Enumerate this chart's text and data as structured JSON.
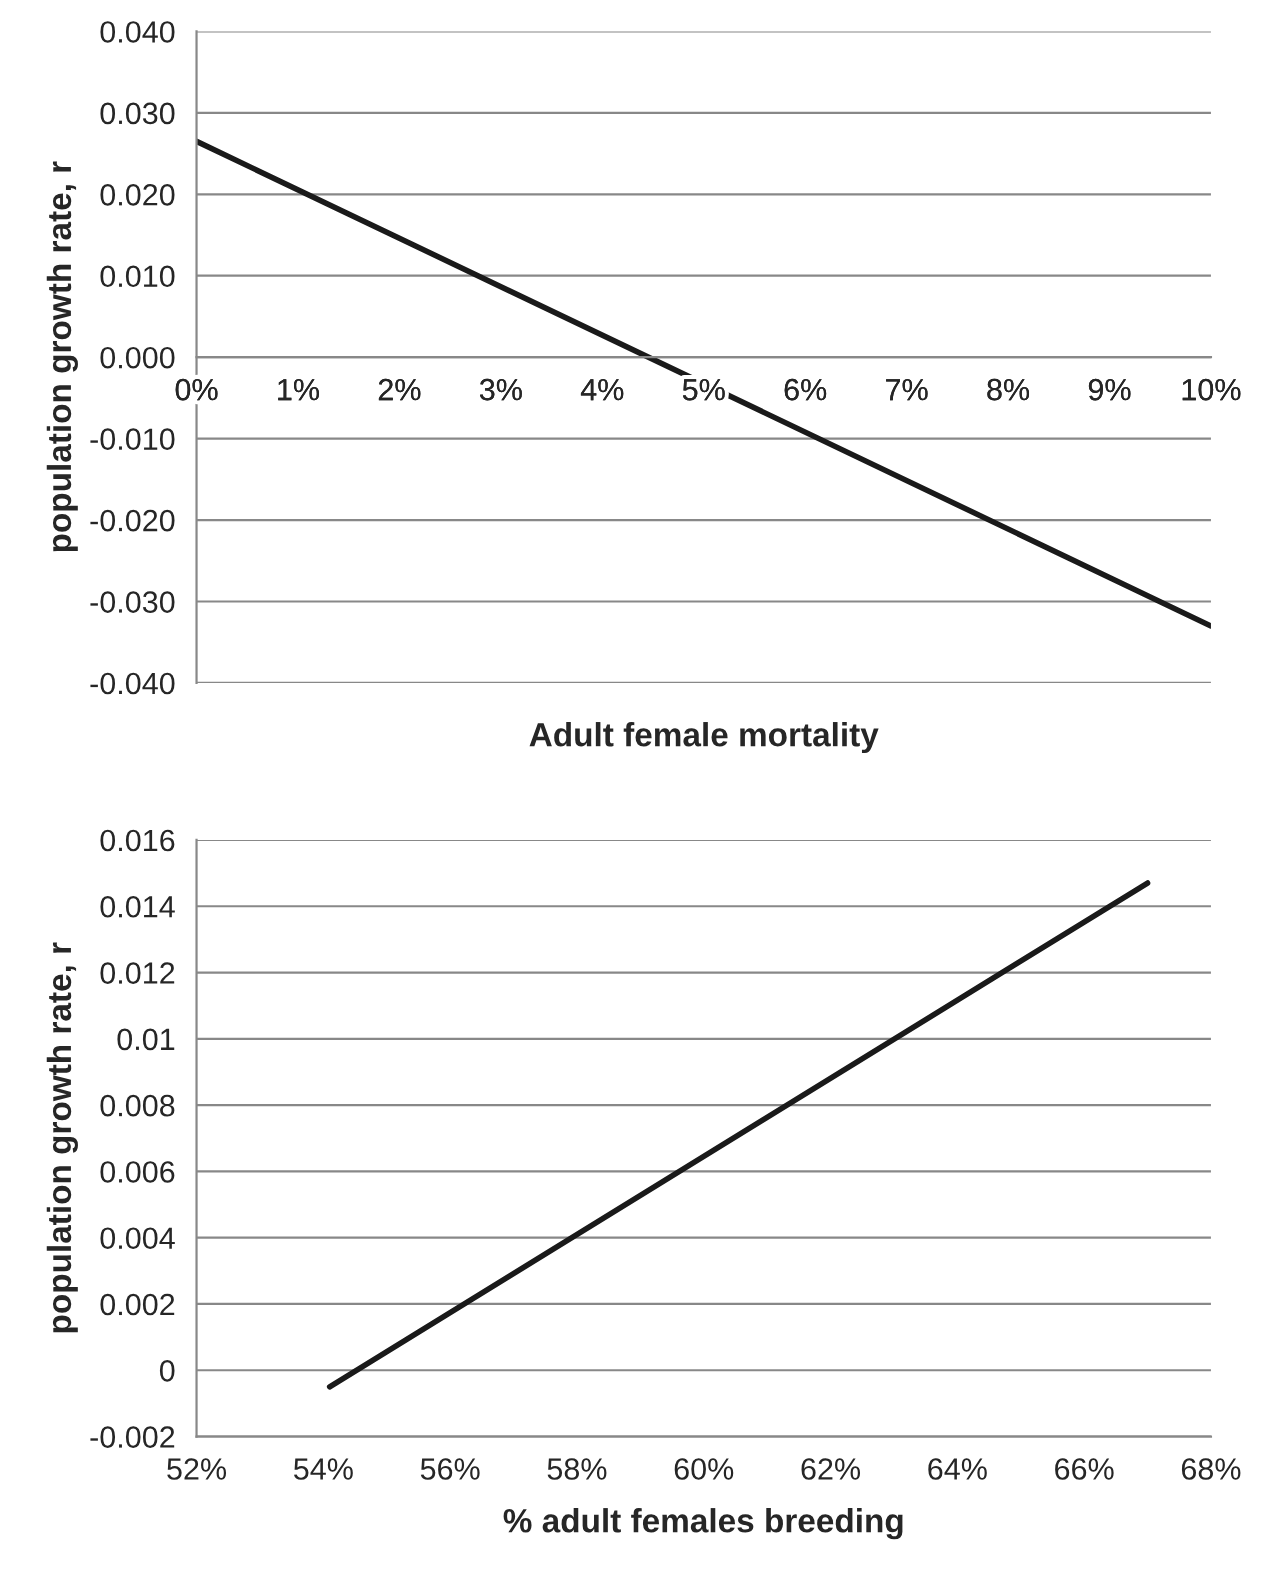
{
  "chart_data": [
    {
      "type": "line",
      "xlabel": "Adult female mortality",
      "ylabel": "population growth rate, r",
      "x": [
        0,
        10
      ],
      "series": [
        {
          "color": "#1a1a1a",
          "values": [
            0.0265,
            -0.033
          ]
        }
      ],
      "xlim": [
        0,
        10
      ],
      "xticks": [
        {
          "value": 0,
          "label": "0%"
        },
        {
          "value": 1,
          "label": "1%"
        },
        {
          "value": 2,
          "label": "2%"
        },
        {
          "value": 3,
          "label": "3%"
        },
        {
          "value": 4,
          "label": "4%"
        },
        {
          "value": 5,
          "label": "5%"
        },
        {
          "value": 6,
          "label": "6%"
        },
        {
          "value": 7,
          "label": "7%"
        },
        {
          "value": 8,
          "label": "8%"
        },
        {
          "value": 9,
          "label": "9%"
        },
        {
          "value": 10,
          "label": "10%"
        }
      ],
      "ylim": [
        -0.04,
        0.04
      ],
      "yticks": [
        {
          "value": -0.04,
          "label": "-0.040"
        },
        {
          "value": -0.03,
          "label": "-0.030"
        },
        {
          "value": -0.02,
          "label": "-0.020"
        },
        {
          "value": -0.01,
          "label": "-0.010"
        },
        {
          "value": 0,
          "label": "0.000"
        },
        {
          "value": 0.01,
          "label": "0.010"
        },
        {
          "value": 0.02,
          "label": "0.020"
        },
        {
          "value": 0.03,
          "label": "0.030"
        },
        {
          "value": 0.04,
          "label": "0.040"
        }
      ],
      "grid": "y",
      "legend": false,
      "marker": "none",
      "line_style": "solid"
    },
    {
      "type": "line",
      "xlabel": "% adult females breeding",
      "ylabel": "population growth rate, r",
      "x": [
        54.1,
        67
      ],
      "series": [
        {
          "color": "#1a1a1a",
          "values": [
            -0.0005,
            0.0147
          ]
        }
      ],
      "xlim": [
        52,
        68
      ],
      "xticks": [
        {
          "value": 52,
          "label": "52%"
        },
        {
          "value": 54,
          "label": "54%"
        },
        {
          "value": 56,
          "label": "56%"
        },
        {
          "value": 58,
          "label": "58%"
        },
        {
          "value": 60,
          "label": "60%"
        },
        {
          "value": 62,
          "label": "62%"
        },
        {
          "value": 64,
          "label": "64%"
        },
        {
          "value": 66,
          "label": "66%"
        },
        {
          "value": 68,
          "label": "68%"
        }
      ],
      "ylim": [
        -0.002,
        0.016
      ],
      "yticks": [
        {
          "value": -0.002,
          "label": "-0.002"
        },
        0,
        {
          "value": 0.002,
          "label": "0.002"
        },
        {
          "value": 0.004,
          "label": "0.004"
        },
        {
          "value": 0.006,
          "label": "0.006"
        },
        {
          "value": 0.008,
          "label": "0.008"
        },
        {
          "value": 0.01,
          "label": "0.01"
        },
        {
          "value": 0.012,
          "label": "0.012"
        },
        {
          "value": 0.014,
          "label": "0.014"
        },
        {
          "value": 0.016,
          "label": "0.016"
        }
      ],
      "grid": "y",
      "legend": false,
      "marker": "none",
      "line_style": "solid"
    }
  ]
}
